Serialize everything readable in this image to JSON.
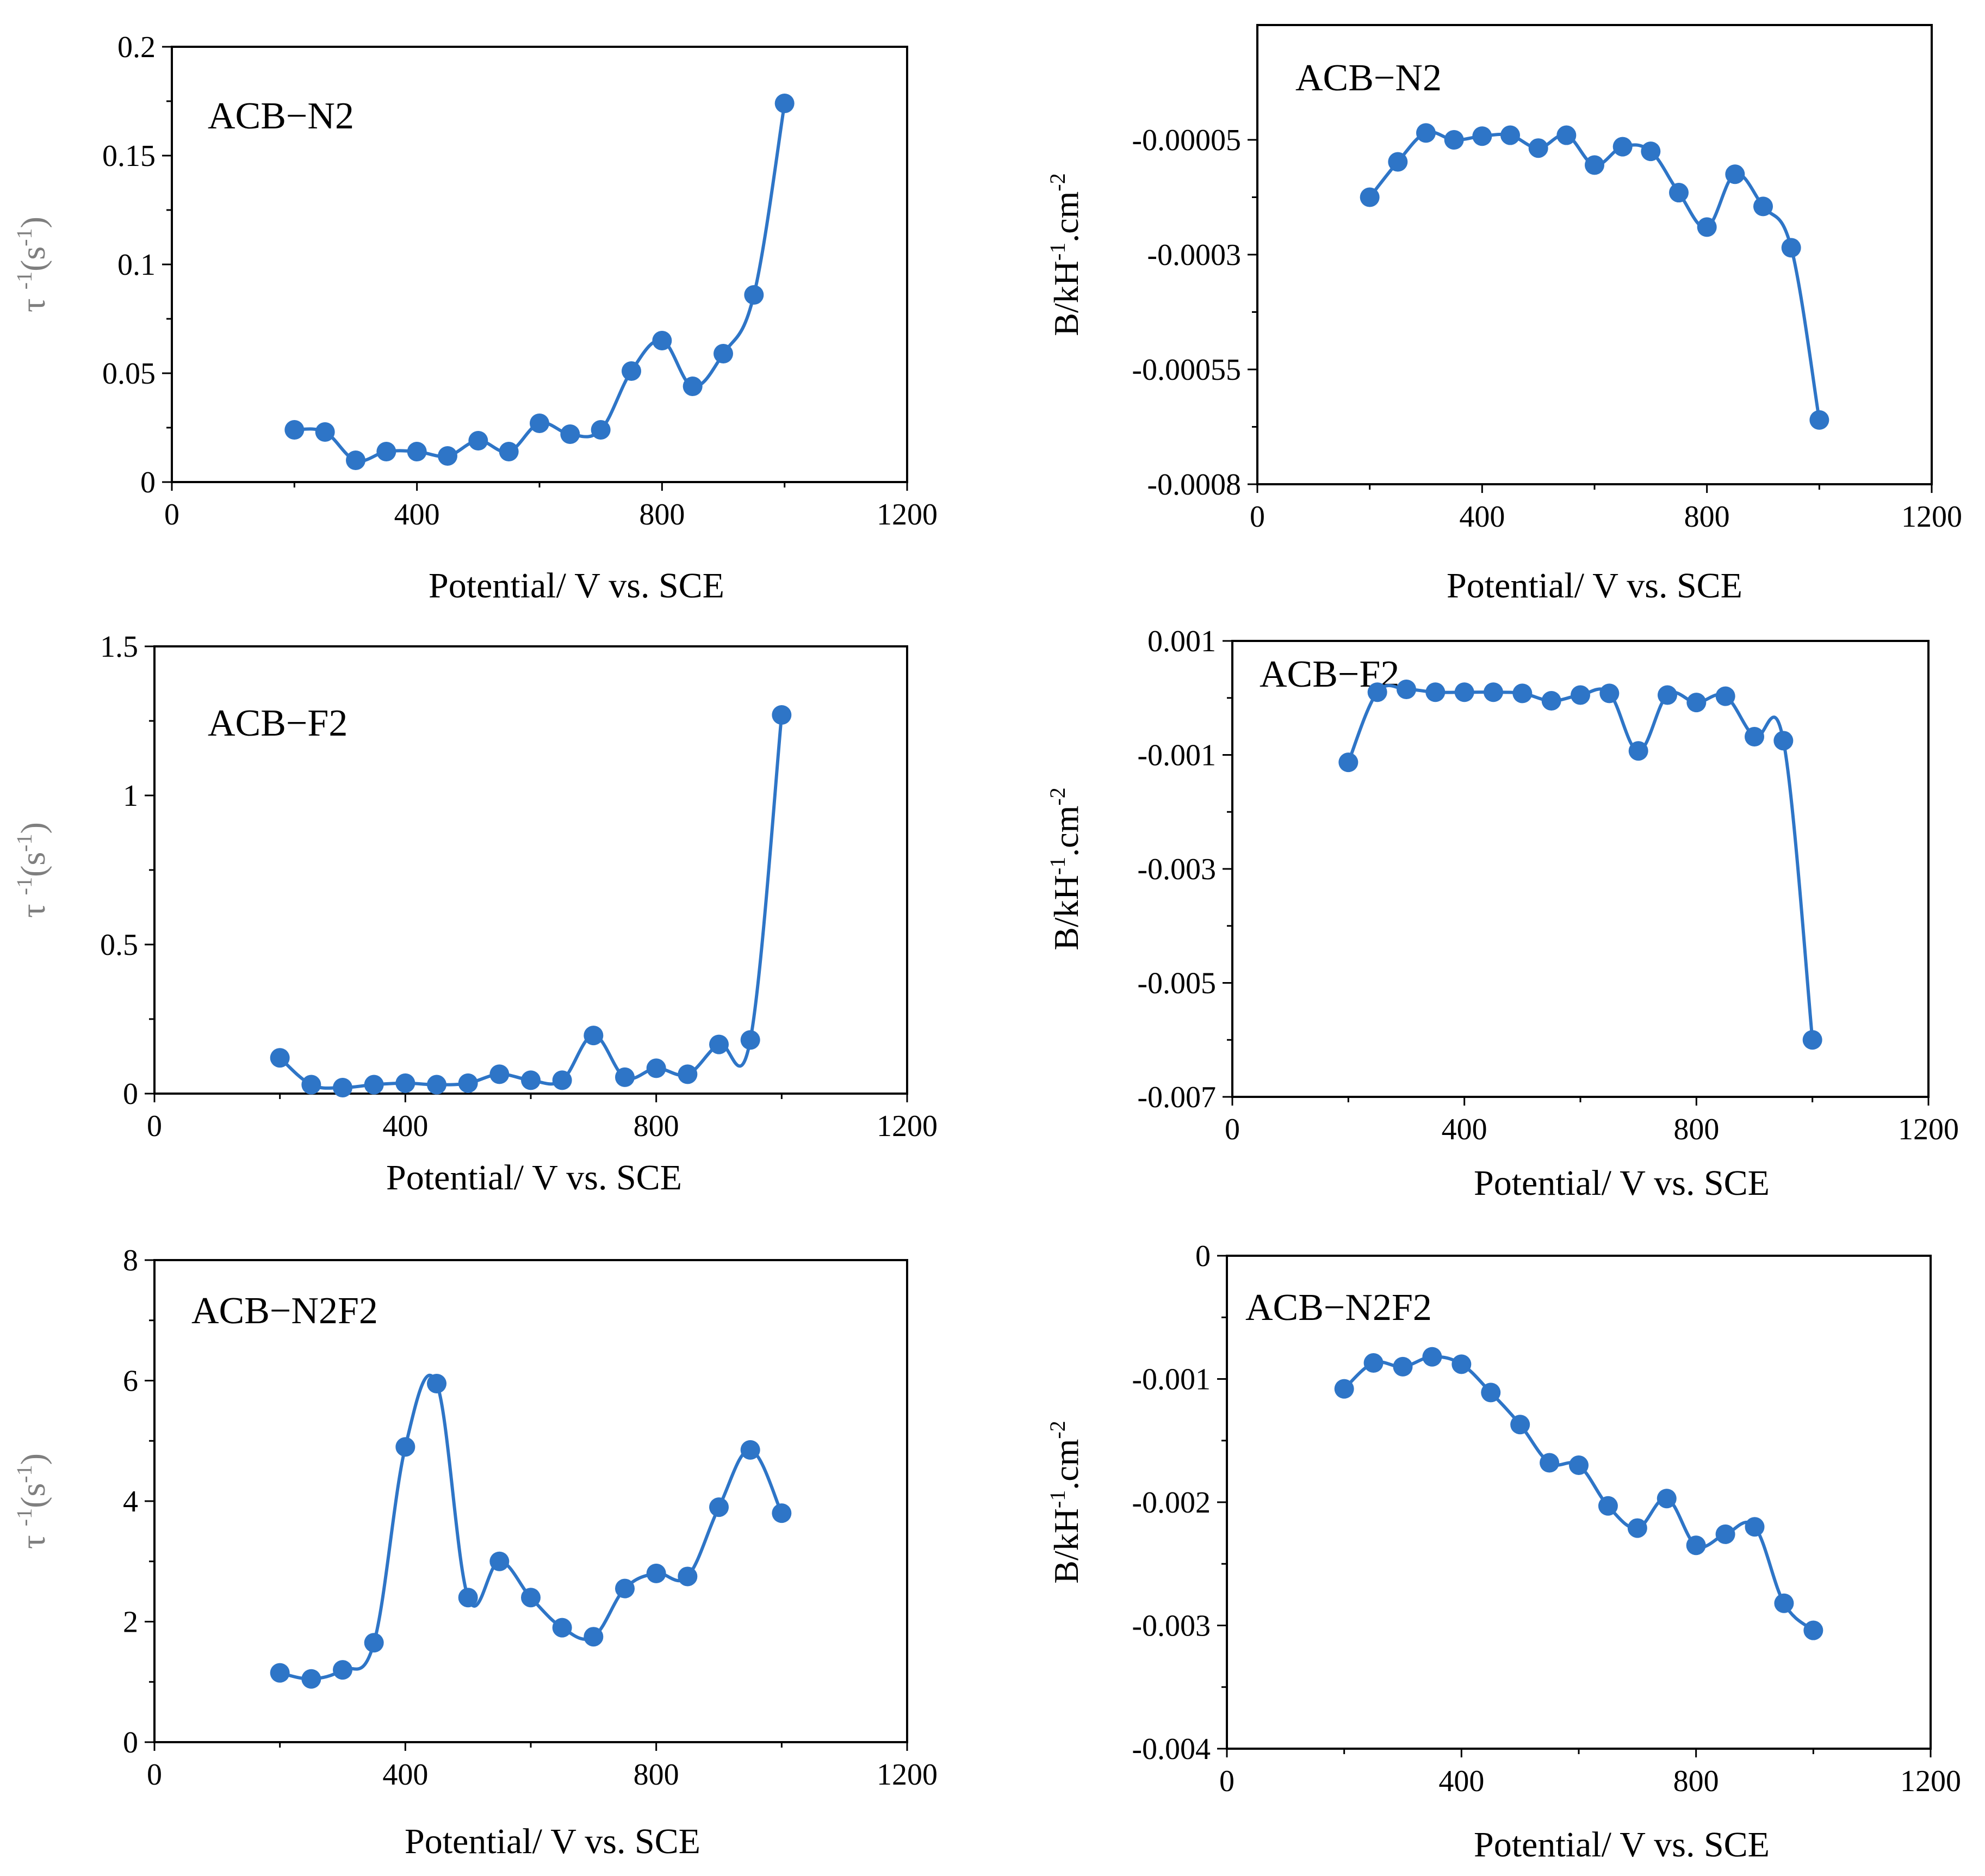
{
  "colors": {
    "series": "#2e75c7",
    "frame": "#000000",
    "ylabel_tau": "#7f7f7f"
  },
  "chart_data": [
    {
      "type": "line",
      "label": "ACB−N2",
      "xlabel": "Potential/ V vs. SCE",
      "ylabel": "τ -1(s-1)",
      "xlim": [
        0,
        1200
      ],
      "ylim": [
        0,
        0.2
      ],
      "xticks": [
        "0",
        "400",
        "800",
        "1200"
      ],
      "yticks": [
        "0",
        "0.05",
        "0.1",
        "0.15",
        "0.2"
      ],
      "x": [
        200,
        250,
        300,
        350,
        400,
        450,
        500,
        550,
        600,
        650,
        700,
        750,
        800,
        850,
        900,
        950,
        1000
      ],
      "y": [
        0.024,
        0.023,
        0.01,
        0.014,
        0.014,
        0.012,
        0.019,
        0.014,
        0.027,
        0.022,
        0.024,
        0.051,
        0.065,
        0.044,
        0.059,
        0.086,
        0.174
      ]
    },
    {
      "type": "line",
      "label": "ACB−N2",
      "xlabel": "Potential/ V vs. SCE",
      "ylabel": "B/kH-1.cm-2",
      "xlim": [
        0,
        1200
      ],
      "ylim": [
        -0.0008,
        0.0002
      ],
      "xticks": [
        "0",
        "400",
        "800",
        "1200"
      ],
      "yticks": [
        "-0.0008",
        "-0.00055",
        "-0.0003",
        "-0.00005"
      ],
      "ytick_values": [
        -0.0008,
        -0.00055,
        -0.0003,
        -5e-05
      ],
      "x": [
        200,
        250,
        300,
        350,
        400,
        450,
        500,
        550,
        600,
        650,
        700,
        750,
        800,
        850,
        900,
        950,
        1000
      ],
      "y": [
        -0.000175,
        -9.8e-05,
        -3.5e-05,
        -5e-05,
        -4.2e-05,
        -4e-05,
        -6.8e-05,
        -4e-05,
        -0.000105,
        -6.5e-05,
        -7.5e-05,
        -0.000165,
        -0.00024,
        -0.000125,
        -0.000195,
        -0.000285,
        -0.00066
      ]
    },
    {
      "type": "line",
      "label": "ACB−F2",
      "xlabel": "Potential/ V vs. SCE",
      "ylabel": "τ -1(s-1)",
      "xlim": [
        0,
        1200
      ],
      "ylim": [
        0,
        1.5
      ],
      "xticks": [
        "0",
        "400",
        "800",
        "1200"
      ],
      "yticks": [
        "0",
        "0.5",
        "1",
        "1.5"
      ],
      "x": [
        200,
        250,
        300,
        350,
        400,
        450,
        500,
        550,
        600,
        650,
        700,
        750,
        800,
        850,
        900,
        950,
        1000
      ],
      "y": [
        0.12,
        0.03,
        0.02,
        0.03,
        0.035,
        0.03,
        0.035,
        0.065,
        0.045,
        0.045,
        0.195,
        0.055,
        0.085,
        0.065,
        0.165,
        0.18,
        1.27
      ]
    },
    {
      "type": "line",
      "label": "ACB−F2",
      "xlabel": "Potential/ V vs. SCE",
      "ylabel": "B/kH-1.cm-2",
      "xlim": [
        0,
        1200
      ],
      "ylim": [
        -0.007,
        0.001
      ],
      "xticks": [
        "0",
        "400",
        "800",
        "1200"
      ],
      "yticks": [
        "-0.007",
        "-0.005",
        "-0.003",
        "-0.001",
        "0.001"
      ],
      "x": [
        200,
        250,
        300,
        350,
        400,
        450,
        500,
        550,
        600,
        650,
        700,
        750,
        800,
        850,
        900,
        950,
        1000
      ],
      "y": [
        -0.00113,
        0.0001,
        0.00015,
        0.0001,
        0.0001,
        0.0001,
        8e-05,
        -5e-05,
        5e-05,
        8e-05,
        -0.00093,
        5e-05,
        -8e-05,
        3e-05,
        -0.00068,
        -0.00075,
        -0.006
      ]
    },
    {
      "type": "line",
      "label": "ACB−N2F2",
      "xlabel": "Potential/ V vs. SCE",
      "ylabel": "τ -1(s-1)",
      "xlim": [
        0,
        1200
      ],
      "ylim": [
        0,
        8
      ],
      "xticks": [
        "0",
        "400",
        "800",
        "1200"
      ],
      "yticks": [
        "0",
        "2",
        "4",
        "6",
        "8"
      ],
      "x": [
        200,
        250,
        300,
        350,
        400,
        450,
        500,
        550,
        600,
        650,
        700,
        750,
        800,
        850,
        900,
        950,
        1000
      ],
      "y": [
        1.15,
        1.05,
        1.2,
        1.65,
        4.9,
        5.95,
        2.4,
        3.0,
        2.4,
        1.9,
        1.75,
        2.55,
        2.8,
        2.75,
        3.9,
        4.85,
        3.8
      ]
    },
    {
      "type": "line",
      "label": "ACB−N2F2",
      "xlabel": "Potential/ V vs. SCE",
      "ylabel": "B/kH-1.cm-2",
      "xlim": [
        0,
        1200
      ],
      "ylim": [
        -0.004,
        0
      ],
      "xticks": [
        "0",
        "400",
        "800",
        "1200"
      ],
      "yticks": [
        "-0.004",
        "-0.003",
        "-0.002",
        "-0.001",
        "0"
      ],
      "x": [
        200,
        250,
        300,
        350,
        400,
        450,
        500,
        550,
        600,
        650,
        700,
        750,
        800,
        850,
        900,
        950,
        1000
      ],
      "y": [
        -0.00108,
        -0.00087,
        -0.0009,
        -0.00082,
        -0.00088,
        -0.00111,
        -0.00137,
        -0.00168,
        -0.0017,
        -0.00203,
        -0.00221,
        -0.00197,
        -0.00235,
        -0.00226,
        -0.0022,
        -0.00282,
        -0.00304
      ]
    }
  ]
}
